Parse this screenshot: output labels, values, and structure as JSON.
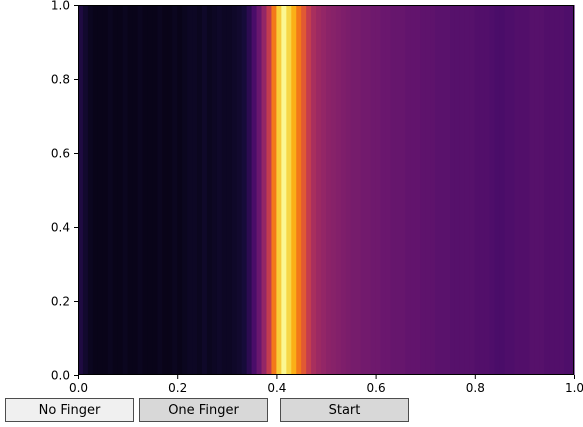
{
  "chart_data": {
    "type": "heatmap",
    "colormap": "inferno",
    "xlim": [
      0.0,
      1.0
    ],
    "ylim": [
      0.0,
      1.0
    ],
    "xticks": [
      0.0,
      0.2,
      0.4,
      0.6,
      0.8,
      1.0
    ],
    "yticks": [
      0.0,
      0.2,
      0.4,
      0.6,
      0.8,
      1.0
    ],
    "xtick_labels": [
      "0.0",
      "0.2",
      "0.4",
      "0.6",
      "0.8",
      "1.0"
    ],
    "ytick_labels": [
      "0.0",
      "0.2",
      "0.4",
      "0.6",
      "0.8",
      "1.0"
    ],
    "column_values": [
      0.12,
      0.08,
      0.05,
      0.04,
      0.04,
      0.04,
      0.05,
      0.04,
      0.04,
      0.05,
      0.04,
      0.04,
      0.05,
      0.04,
      0.04,
      0.04,
      0.05,
      0.04,
      0.04,
      0.05,
      0.04,
      0.05,
      0.06,
      0.06,
      0.05,
      0.07,
      0.05,
      0.06,
      0.07,
      0.06,
      0.06,
      0.07,
      0.08,
      0.1,
      0.15,
      0.22,
      0.3,
      0.4,
      0.52,
      0.7,
      0.88,
      0.98,
      0.9,
      0.82,
      0.7,
      0.62,
      0.52,
      0.45,
      0.42,
      0.4,
      0.38,
      0.37,
      0.36,
      0.35,
      0.34,
      0.33,
      0.33,
      0.32,
      0.32,
      0.31,
      0.31,
      0.3,
      0.3,
      0.29,
      0.29,
      0.29,
      0.28,
      0.28,
      0.28,
      0.27,
      0.27,
      0.27,
      0.26,
      0.26,
      0.26,
      0.25,
      0.25,
      0.25,
      0.25,
      0.25,
      0.24,
      0.24,
      0.24,
      0.23,
      0.22,
      0.22,
      0.23,
      0.23,
      0.24,
      0.24,
      0.24,
      0.25,
      0.25,
      0.25,
      0.24,
      0.24,
      0.24,
      0.24,
      0.23,
      0.23
    ]
  },
  "buttons": {
    "no_finger": "No Finger",
    "one_finger": "One Finger",
    "start": "Start"
  }
}
